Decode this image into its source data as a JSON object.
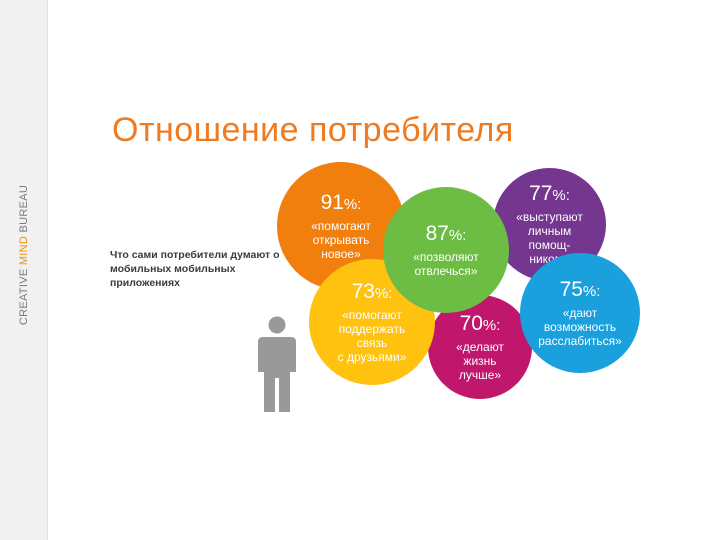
{
  "brand": {
    "part1": "CREATIVE ",
    "part2": "MIND",
    "part3": " BUREAU"
  },
  "title": "Отношение потребителя",
  "subtitle": "Что сами потребители думают о мобильных мобильных приложениях",
  "bubbles": {
    "b91": {
      "value": "91",
      "sign": "%:",
      "text": "«помогают\nоткрывать\nновое»",
      "color": "#f07f0e"
    },
    "b87": {
      "value": "87",
      "sign": "%:",
      "text": "«позволяют\nотвлечься»",
      "color": "#6dbd45"
    },
    "b73": {
      "value": "73",
      "sign": "%:",
      "text": "«помогают\nподдержать\nсвязь\nс друзьями»",
      "color": "#ffc20e"
    },
    "b77": {
      "value": "77",
      "sign": "%:",
      "text": "«выступают\nличным\nпомощ-\nником»",
      "color": "#74368f"
    },
    "b75": {
      "value": "75",
      "sign": "%:",
      "text": "«дают\nвозможность\nрасслабиться»",
      "color": "#1aa0dc"
    },
    "b70": {
      "value": "70",
      "sign": "%:",
      "text": "«делают\nжизнь\nлучше»",
      "color": "#c0166b"
    }
  },
  "icons": {
    "person": "person-silhouette-icon"
  }
}
